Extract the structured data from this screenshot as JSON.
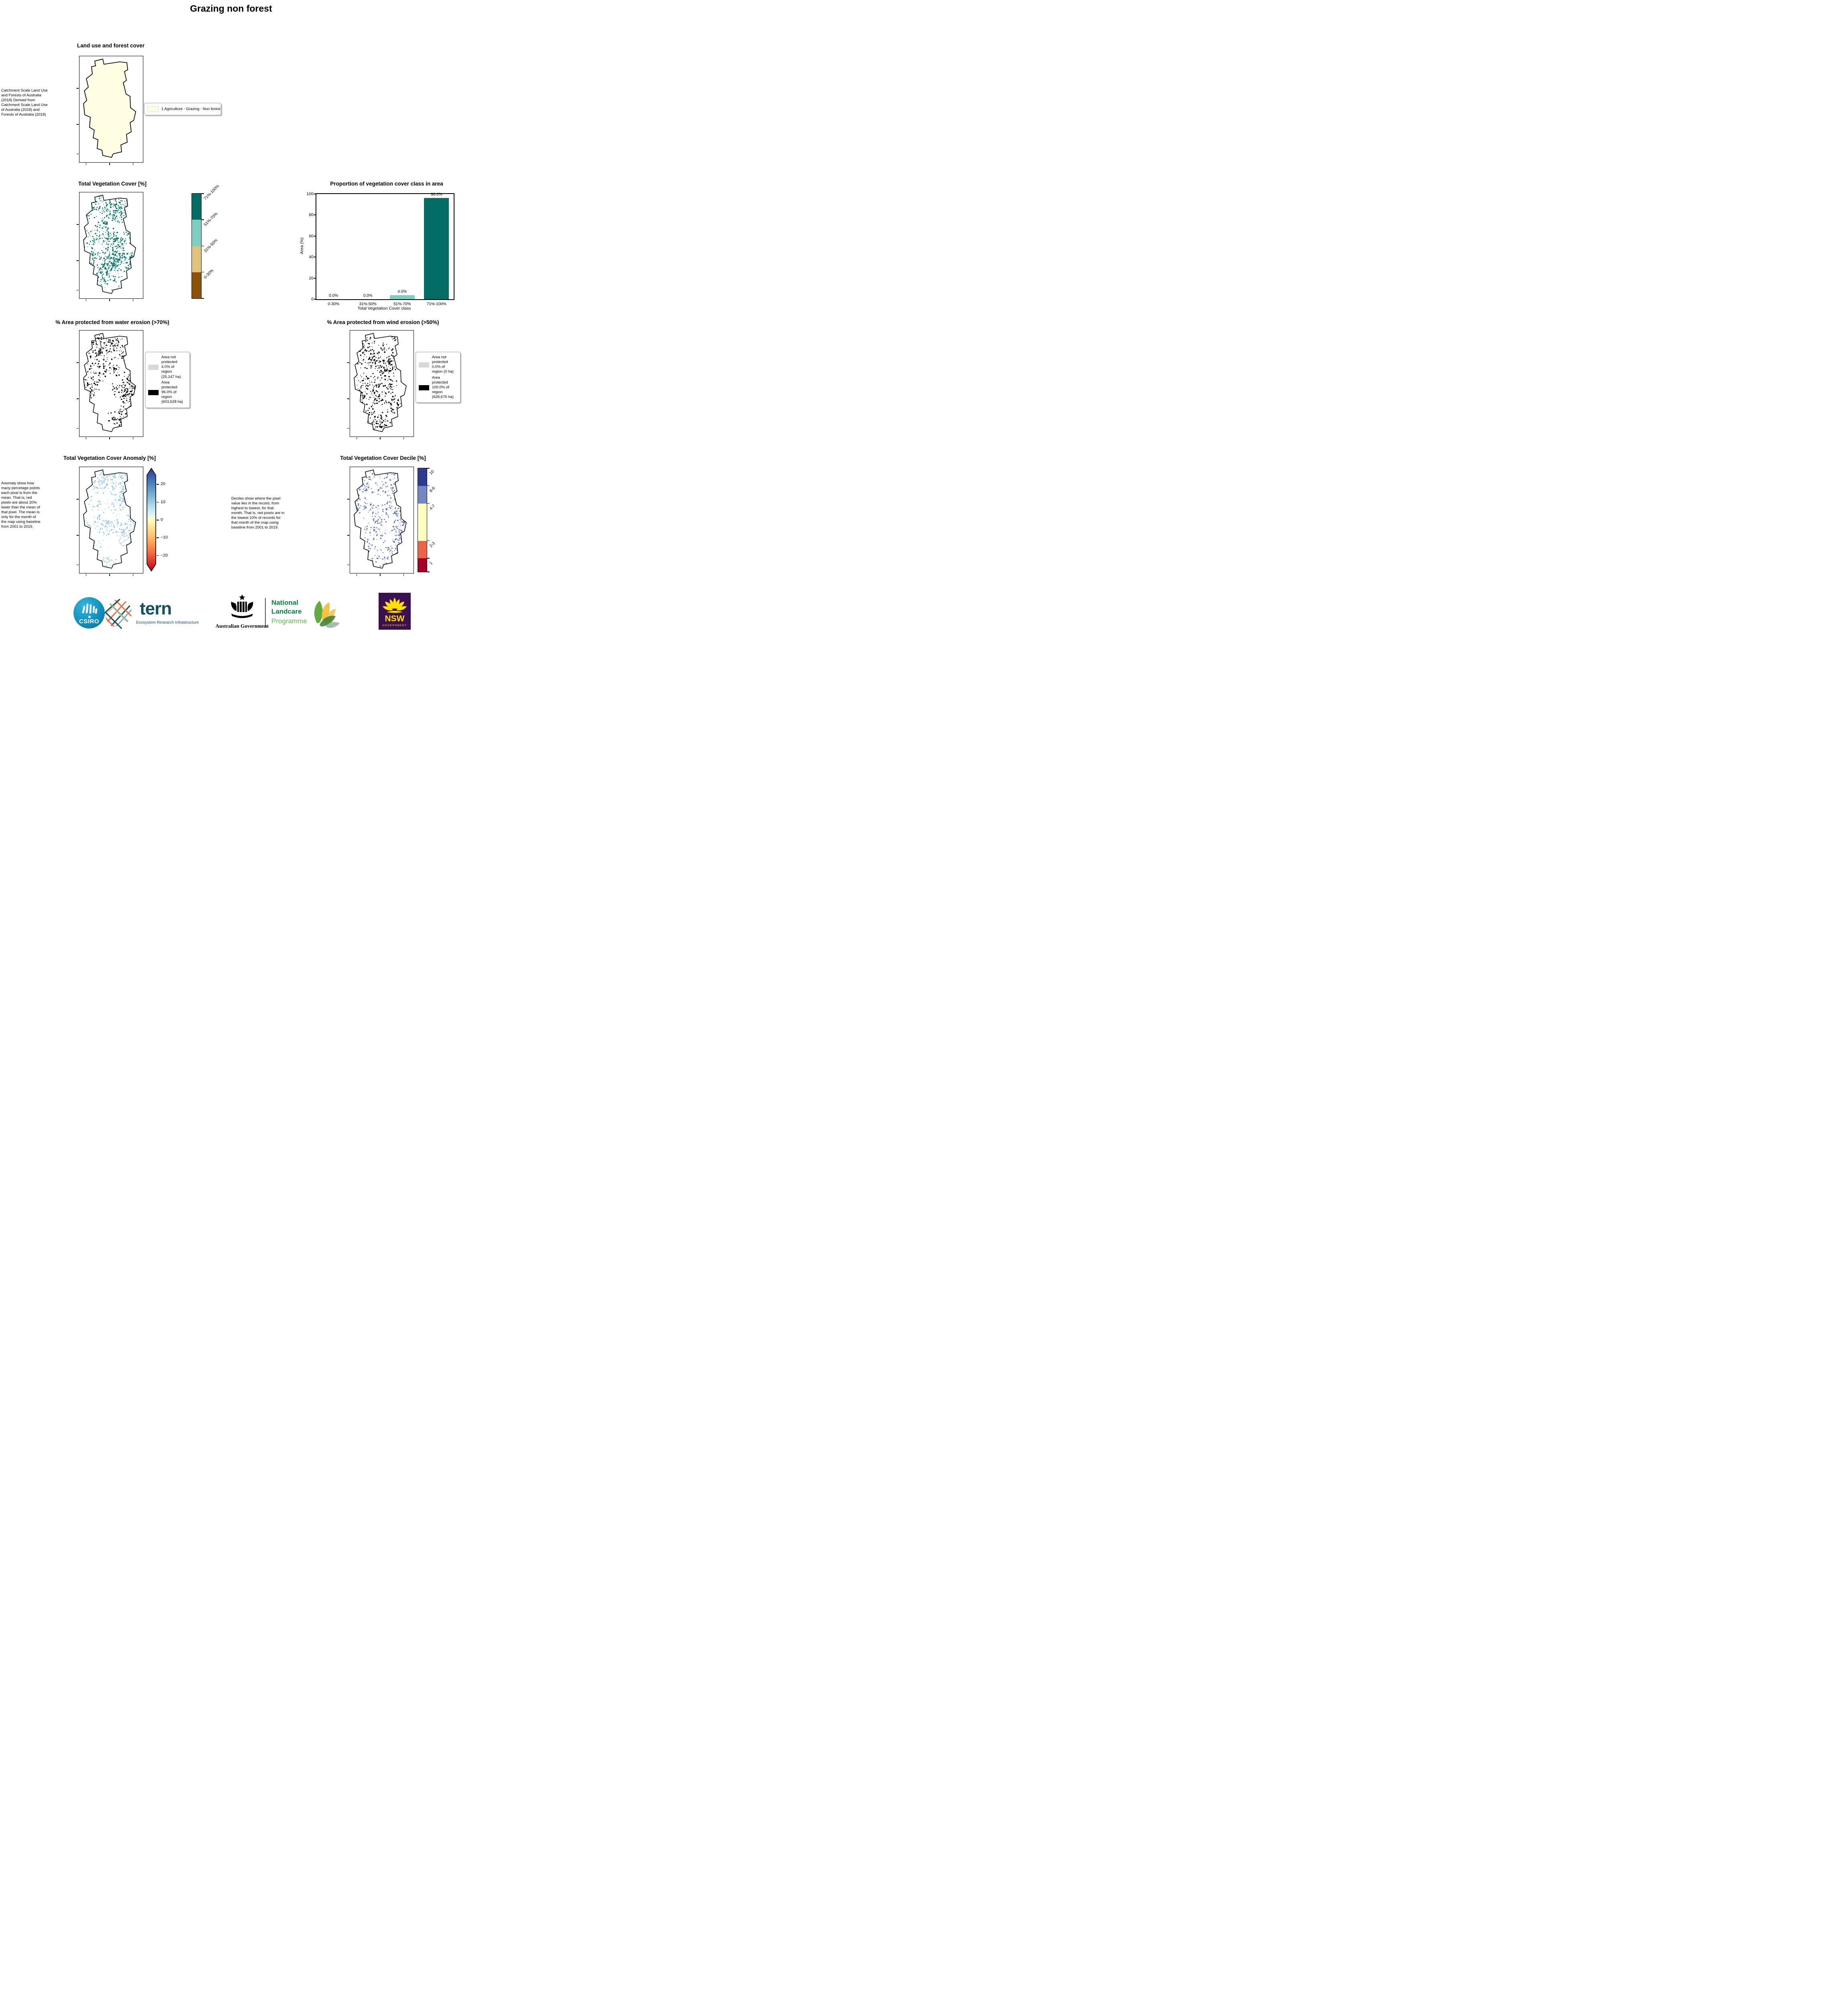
{
  "page_title": "Grazing non forest",
  "panels": {
    "landuse": {
      "title": "Land use and forest cover",
      "side_text": "Catchment Scale Land Use and Forests of Australia (2018) Derived from Catchment Scale Land Use of Australia (2018) and Forests of Australia (2018)",
      "legend": {
        "label": "1 Agriculture - Grazing - Non forest",
        "swatch_color": "#fffde4"
      }
    },
    "veg_cover": {
      "title": "Total Vegetation Cover [%]",
      "colorbar": {
        "labels": [
          "71%-100%",
          "51%-70%",
          "31%-50%",
          "0-30%"
        ],
        "colors": [
          "#046c64",
          "#80cdc1",
          "#dfc27d",
          "#8c510a"
        ]
      }
    },
    "water_erosion": {
      "title": "% Area protected from water erosion (>70%)",
      "legend": [
        {
          "label": "Area not protected 4.0% of region (25,147 ha)",
          "color": "#d9d9d9"
        },
        {
          "label": "Area protected 96.0% of region (603,528 ha)",
          "color": "#000000"
        }
      ]
    },
    "wind_erosion": {
      "title": "% Area protected from wind erosion (>50%)",
      "legend": [
        {
          "label": "Area not protected 0.0% of region (0 ha)",
          "color": "#d9d9d9"
        },
        {
          "label": "Area protected 100.0% of region (628,675 ha)",
          "color": "#000000"
        }
      ]
    },
    "anomaly": {
      "title": "Total Vegetation Cover Anomaly [%]",
      "side_text": "Anomaly show how many percetage points each pixel is from the mean. That is, red pixels are about 20% lower than the mean of that pixel. The mean is only for the month of the map using baseline from 2001 to 2019.",
      "colorbar_ticks": [
        {
          "v": 20,
          "label": "20"
        },
        {
          "v": 10,
          "label": "10"
        },
        {
          "v": 0,
          "label": "0"
        },
        {
          "v": -10,
          "label": "−10"
        },
        {
          "v": -20,
          "label": "−20"
        }
      ]
    },
    "decile": {
      "title": "Total Vegetation Cover Decile [%]",
      "side_text": "Deciles show where the pixel value lies in the record, from highest to lowest, for that month. That is, red pixels are in the lowest 10% of records for that month of the map using baseline from 2001 to 2019.",
      "colorbar": {
        "labels": [
          "10",
          "8-9",
          "4-7",
          "2-3",
          "1"
        ],
        "colors": [
          "#2c3d8f",
          "#7386c0",
          "#ffffbf",
          "#ec6447",
          "#a50026"
        ],
        "heights_pct": [
          17,
          17,
          36,
          17,
          13
        ]
      }
    }
  },
  "chart_data": {
    "type": "bar",
    "title": "Proportion of vegetation cover class in area",
    "categories": [
      "0-30%",
      "31%-50%",
      "51%-70%",
      "71%-100%"
    ],
    "values": [
      0.0,
      0.0,
      4.0,
      96.0
    ],
    "bar_labels": [
      "0.0%",
      "0.0%",
      "4.0%",
      "96.0%"
    ],
    "bar_colors": [
      "#8c510a",
      "#dfc27d",
      "#80cdc1",
      "#046c64"
    ],
    "xlabel": "Total Vegetation Cover class",
    "ylabel": "Area (%)",
    "ylim": [
      0,
      100
    ],
    "yticks": [
      0,
      20,
      40,
      60,
      80,
      100
    ],
    "legend_position": "none",
    "grid": false
  },
  "footer": {
    "csiro_label": "CSIRO",
    "tern_label": "tern",
    "tern_sub": "Ecosystem Research Infrastructure",
    "aus_gov_label": "Australian Government",
    "landcare_line1": "National",
    "landcare_line2": "Landcare",
    "landcare_line3": "Programme",
    "nsw_label": "NSW",
    "nsw_sub": "GOVERNMENT"
  }
}
